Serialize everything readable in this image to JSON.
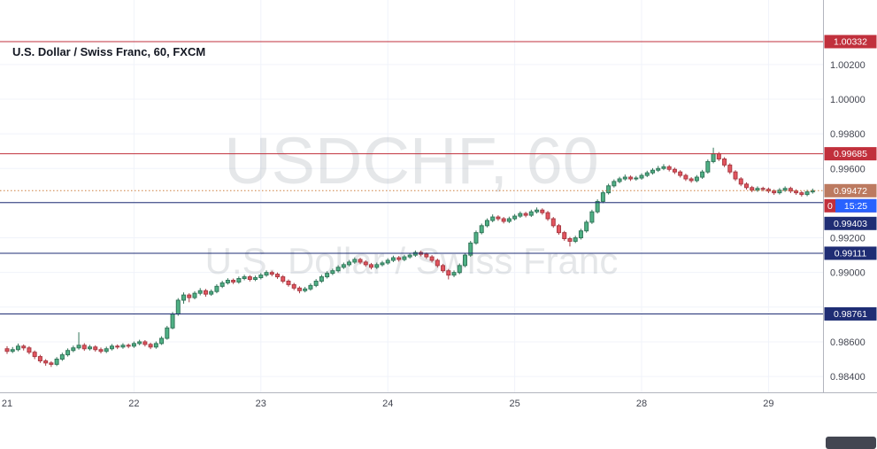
{
  "header": {
    "title": "U.S. Dollar / Swiss Franc, 60, FXCM"
  },
  "watermark": {
    "line1": "USDCHF, 60",
    "line2": "U.S. Dollar / Swiss Franc"
  },
  "colors": {
    "up_fill": "#4fb185",
    "up_stroke": "#33765a",
    "down_fill": "#e4555f",
    "down_stroke": "#a93a43",
    "grid": "#f0f3fa",
    "axis_border": "#b2b5be",
    "red": "#c1303c",
    "navy": "#1f2d74",
    "current_line": "#cd7e3f",
    "current_badge": "#bc7a60",
    "countdown": "#2962ff"
  },
  "axis": {
    "price_ticks": [
      {
        "value": 1.002,
        "label": "1.00200"
      },
      {
        "value": 1.0,
        "label": "1.00000"
      },
      {
        "value": 0.998,
        "label": "0.99800"
      },
      {
        "value": 0.996,
        "label": "0.99600"
      },
      {
        "value": 0.992,
        "label": "0.99200"
      },
      {
        "value": 0.99,
        "label": "0.99000"
      },
      {
        "value": 0.986,
        "label": "0.98600"
      },
      {
        "value": 0.984,
        "label": "0.98400"
      }
    ]
  },
  "levels": [
    {
      "price": 1.00332,
      "label": "1.00332",
      "style": "solid",
      "line_color": "#c1303c",
      "badge_color": "#c1303c"
    },
    {
      "price": 0.99685,
      "label": "0.99685",
      "style": "solid",
      "line_color": "#c1303c",
      "badge_color": "#c1303c"
    },
    {
      "price": 0.99472,
      "label": "0.99472",
      "style": "dotted",
      "line_color": "#cd7e3f",
      "badge_color": "#bc7a60",
      "current": true
    },
    {
      "price": 0.99403,
      "label": "0.99403",
      "style": "solid",
      "line_color": "#1f2d74",
      "badge_color": "#1f2d74"
    },
    {
      "price": 0.99111,
      "label": "0.99111",
      "style": "solid",
      "line_color": "#1f2d74",
      "badge_color": "#1f2d74"
    },
    {
      "price": 0.98761,
      "label": "0.98761",
      "style": "solid",
      "line_color": "#1f2d74",
      "badge_color": "#1f2d74"
    }
  ],
  "countdown": {
    "text": "15:25",
    "partial_left_text": "0"
  },
  "chart_data": {
    "type": "candlestick",
    "symbol": "USDCHF",
    "name": "U.S. Dollar / Swiss Franc",
    "interval_minutes": 60,
    "exchange": "FXCM",
    "last_price": 0.99472,
    "visible_price_range": [
      0.9831,
      1.0057
    ],
    "price_scale": 1e-05,
    "grid_prices": [
      1.002,
      1.0,
      0.998,
      0.996,
      0.994,
      0.992,
      0.99,
      0.988,
      0.986,
      0.984
    ],
    "days": [
      {
        "label": "21",
        "start": 0
      },
      {
        "label": "22",
        "start": 23
      },
      {
        "label": "23",
        "start": 46
      },
      {
        "label": "24",
        "start": 69
      },
      {
        "label": "25",
        "start": 92
      },
      {
        "label": "28",
        "start": 115
      },
      {
        "label": "29",
        "start": 138
      }
    ],
    "candles": [
      [
        98560,
        98575,
        98530,
        98545
      ],
      [
        98545,
        98570,
        98535,
        98555
      ],
      [
        98555,
        98590,
        98545,
        98575
      ],
      [
        98575,
        98585,
        98550,
        98565
      ],
      [
        98565,
        98575,
        98528,
        98540
      ],
      [
        98540,
        98550,
        98500,
        98515
      ],
      [
        98515,
        98525,
        98478,
        98490
      ],
      [
        98490,
        98500,
        98462,
        98478
      ],
      [
        98478,
        98488,
        98455,
        98470
      ],
      [
        98470,
        98512,
        98460,
        98500
      ],
      [
        98500,
        98537,
        98490,
        98525
      ],
      [
        98525,
        98562,
        98515,
        98550
      ],
      [
        98550,
        98578,
        98540,
        98565
      ],
      [
        98565,
        98655,
        98555,
        98580
      ],
      [
        98580,
        98592,
        98548,
        98560
      ],
      [
        98560,
        98582,
        98550,
        98570
      ],
      [
        98570,
        98580,
        98543,
        98555
      ],
      [
        98555,
        98567,
        98533,
        98545
      ],
      [
        98545,
        98572,
        98535,
        98560
      ],
      [
        98560,
        98587,
        98550,
        98575
      ],
      [
        98575,
        98585,
        98558,
        98570
      ],
      [
        98570,
        98592,
        98560,
        98580
      ],
      [
        98580,
        98590,
        98563,
        98575
      ],
      [
        98575,
        98602,
        98565,
        98590
      ],
      [
        98590,
        98612,
        98580,
        98600
      ],
      [
        98600,
        98610,
        98573,
        98585
      ],
      [
        98585,
        98595,
        98558,
        98570
      ],
      [
        98570,
        98602,
        98560,
        98590
      ],
      [
        98590,
        98632,
        98582,
        98620
      ],
      [
        98620,
        98692,
        98612,
        98680
      ],
      [
        98680,
        98772,
        98672,
        98760
      ],
      [
        98760,
        98852,
        98750,
        98840
      ],
      [
        98840,
        98885,
        98820,
        98870
      ],
      [
        98870,
        98880,
        98828,
        98855
      ],
      [
        98855,
        98892,
        98845,
        98880
      ],
      [
        98880,
        98910,
        98868,
        98895
      ],
      [
        98895,
        98905,
        98860,
        98875
      ],
      [
        98875,
        98902,
        98865,
        98890
      ],
      [
        98890,
        98932,
        98880,
        98920
      ],
      [
        98920,
        98952,
        98910,
        98940
      ],
      [
        98940,
        98967,
        98930,
        98955
      ],
      [
        98955,
        98965,
        98933,
        98945
      ],
      [
        98945,
        98977,
        98935,
        98965
      ],
      [
        98965,
        98987,
        98955,
        98975
      ],
      [
        98975,
        98985,
        98948,
        98960
      ],
      [
        98960,
        98982,
        98950,
        98970
      ],
      [
        98970,
        98997,
        98960,
        98985
      ],
      [
        98985,
        99012,
        98975,
        99000
      ],
      [
        99000,
        99010,
        98978,
        98990
      ],
      [
        98990,
        99000,
        98963,
        98975
      ],
      [
        98975,
        98985,
        98938,
        98950
      ],
      [
        98950,
        98960,
        98918,
        98930
      ],
      [
        98930,
        98940,
        98898,
        98910
      ],
      [
        98910,
        98920,
        98880,
        98895
      ],
      [
        98895,
        98917,
        98885,
        98905
      ],
      [
        98905,
        98937,
        98895,
        98925
      ],
      [
        98925,
        98962,
        98915,
        98950
      ],
      [
        98950,
        98987,
        98940,
        98975
      ],
      [
        98975,
        99007,
        98965,
        98995
      ],
      [
        98995,
        99022,
        98985,
        99010
      ],
      [
        99010,
        99042,
        99000,
        99030
      ],
      [
        99030,
        99057,
        99020,
        99045
      ],
      [
        99045,
        99072,
        99035,
        99060
      ],
      [
        99060,
        99087,
        99050,
        99075
      ],
      [
        99075,
        99085,
        99048,
        99060
      ],
      [
        99060,
        99070,
        99033,
        99045
      ],
      [
        99045,
        99055,
        99018,
        99030
      ],
      [
        99030,
        99057,
        99020,
        99045
      ],
      [
        99045,
        99067,
        99035,
        99055
      ],
      [
        99055,
        99082,
        99045,
        99070
      ],
      [
        99070,
        99097,
        99060,
        99085
      ],
      [
        99085,
        99095,
        99063,
        99075
      ],
      [
        99075,
        99102,
        99065,
        99090
      ],
      [
        99090,
        99112,
        99080,
        99100
      ],
      [
        99100,
        99127,
        99090,
        99115
      ],
      [
        99115,
        99125,
        99093,
        99105
      ],
      [
        99105,
        99115,
        99078,
        99090
      ],
      [
        99090,
        99100,
        99058,
        99070
      ],
      [
        99070,
        99080,
        99028,
        99040
      ],
      [
        99040,
        99050,
        98998,
        99010
      ],
      [
        99010,
        99020,
        98960,
        98985
      ],
      [
        98985,
        99012,
        98973,
        99000
      ],
      [
        99000,
        99052,
        98990,
        99040
      ],
      [
        99040,
        99112,
        99030,
        99100
      ],
      [
        99100,
        99182,
        99090,
        99170
      ],
      [
        99170,
        99242,
        99160,
        99230
      ],
      [
        99230,
        99282,
        99220,
        99270
      ],
      [
        99270,
        99312,
        99260,
        99300
      ],
      [
        99300,
        99335,
        99290,
        99320
      ],
      [
        99320,
        99330,
        99298,
        99310
      ],
      [
        99310,
        99320,
        99283,
        99295
      ],
      [
        99295,
        99322,
        99285,
        99310
      ],
      [
        99310,
        99337,
        99300,
        99325
      ],
      [
        99325,
        99352,
        99315,
        99340
      ],
      [
        99340,
        99350,
        99318,
        99330
      ],
      [
        99330,
        99362,
        99320,
        99350
      ],
      [
        99350,
        99375,
        99340,
        99360
      ],
      [
        99360,
        99370,
        99333,
        99345
      ],
      [
        99345,
        99355,
        99298,
        99310
      ],
      [
        99310,
        99320,
        99258,
        99270
      ],
      [
        99270,
        99280,
        99218,
        99230
      ],
      [
        99230,
        99240,
        99183,
        99195
      ],
      [
        99195,
        99205,
        99150,
        99180
      ],
      [
        99180,
        99212,
        99170,
        99200
      ],
      [
        99200,
        99252,
        99190,
        99240
      ],
      [
        99240,
        99302,
        99230,
        99290
      ],
      [
        99290,
        99362,
        99280,
        99350
      ],
      [
        99350,
        99422,
        99340,
        99410
      ],
      [
        99410,
        99472,
        99400,
        99460
      ],
      [
        99460,
        99512,
        99450,
        99500
      ],
      [
        99500,
        99537,
        99490,
        99525
      ],
      [
        99525,
        99552,
        99515,
        99540
      ],
      [
        99540,
        99565,
        99530,
        99550
      ],
      [
        99550,
        99560,
        99528,
        99540
      ],
      [
        99540,
        99557,
        99530,
        99545
      ],
      [
        99545,
        99572,
        99535,
        99560
      ],
      [
        99560,
        99587,
        99550,
        99575
      ],
      [
        99575,
        99602,
        99565,
        99590
      ],
      [
        99590,
        99615,
        99580,
        99600
      ],
      [
        99600,
        99625,
        99590,
        99610
      ],
      [
        99610,
        99620,
        99583,
        99595
      ],
      [
        99595,
        99605,
        99568,
        99580
      ],
      [
        99580,
        99590,
        99548,
        99560
      ],
      [
        99560,
        99570,
        99528,
        99540
      ],
      [
        99540,
        99550,
        99518,
        99530
      ],
      [
        99530,
        99562,
        99520,
        99550
      ],
      [
        99550,
        99592,
        99540,
        99580
      ],
      [
        99580,
        99652,
        99570,
        99640
      ],
      [
        99640,
        99720,
        99630,
        99685
      ],
      [
        99685,
        99695,
        99643,
        99655
      ],
      [
        99655,
        99665,
        99608,
        99620
      ],
      [
        99620,
        99630,
        99568,
        99580
      ],
      [
        99580,
        99590,
        99528,
        99540
      ],
      [
        99540,
        99550,
        99498,
        99510
      ],
      [
        99510,
        99520,
        99478,
        99490
      ],
      [
        99490,
        99500,
        99463,
        99475
      ],
      [
        99475,
        99497,
        99465,
        99485
      ],
      [
        99485,
        99495,
        99468,
        99480
      ],
      [
        99480,
        99490,
        99458,
        99470
      ],
      [
        99470,
        99480,
        99448,
        99460
      ],
      [
        99460,
        99487,
        99450,
        99475
      ],
      [
        99475,
        99497,
        99465,
        99485
      ],
      [
        99485,
        99495,
        99458,
        99470
      ],
      [
        99470,
        99480,
        99448,
        99460
      ],
      [
        99460,
        99470,
        99438,
        99450
      ],
      [
        99450,
        99477,
        99440,
        99465
      ],
      [
        99465,
        99484,
        99455,
        99472
      ]
    ]
  }
}
